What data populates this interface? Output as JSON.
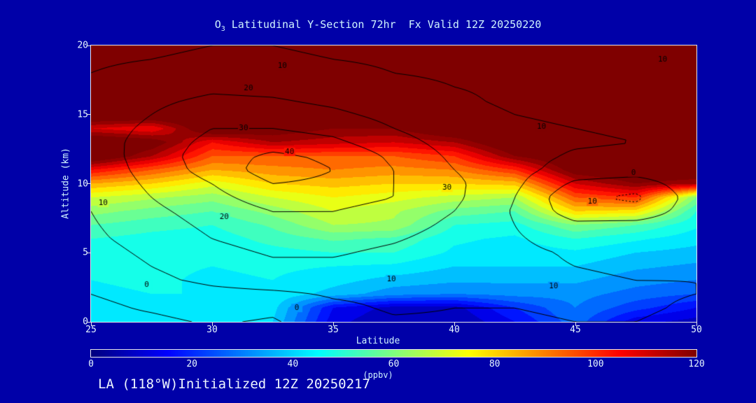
{
  "header": {
    "title_o": "O",
    "title_sub": "3",
    "title_rest": " Latitudinal Y-Section 72hr  Fx Valid 12Z 20250220"
  },
  "footer": {
    "init_text": "LA (118°W)Initialized 12Z 20250217"
  },
  "colors": {
    "background": "#0000A8",
    "text": "#CFF3FF",
    "tick_text": "#E6F7FF",
    "frame": "#E8E8E8",
    "contour_line": "#000000"
  },
  "chart_data": {
    "type": "heatmap",
    "title": "O3 Latitudinal Y-Section 72hr  Fx Valid 12Z 20250220",
    "xlabel": "Latitude",
    "ylabel": "Altitude (km)",
    "xlim": [
      25,
      50
    ],
    "ylim": [
      0,
      20
    ],
    "x_ticks": [
      25,
      30,
      35,
      40,
      45,
      50
    ],
    "y_ticks": [
      0,
      5,
      10,
      15,
      20
    ],
    "colorbar": {
      "label": "(ppbv)",
      "min": 0,
      "max": 120,
      "ticks": [
        0,
        20,
        40,
        60,
        80,
        100,
        120
      ],
      "colormap": "jet",
      "band_interval_ppbv": 5
    },
    "grid": {
      "lats": [
        25,
        27.5,
        30,
        32.5,
        35,
        37.5,
        40,
        42.5,
        45,
        47.5,
        50
      ],
      "alts_km": [
        0,
        1,
        2,
        3,
        4,
        5,
        6,
        7,
        8,
        9,
        10,
        11,
        12,
        13,
        14,
        15,
        16,
        17,
        18,
        19,
        20
      ],
      "ozone_ppbv": [
        [
          40,
          42,
          42,
          40,
          12,
          5,
          5,
          15,
          28,
          12,
          8
        ],
        [
          42,
          44,
          44,
          42,
          15,
          8,
          8,
          20,
          30,
          22,
          15
        ],
        [
          44,
          45,
          45,
          44,
          38,
          32,
          30,
          32,
          32,
          28,
          25
        ],
        [
          45,
          46,
          44,
          45,
          42,
          38,
          36,
          36,
          36,
          32,
          30
        ],
        [
          46,
          46,
          45,
          46,
          45,
          44,
          40,
          40,
          40,
          36,
          34
        ],
        [
          47,
          47,
          46,
          48,
          50,
          50,
          44,
          42,
          44,
          40,
          38
        ],
        [
          50,
          48,
          47,
          52,
          56,
          54,
          46,
          44,
          50,
          46,
          42
        ],
        [
          55,
          52,
          50,
          56,
          65,
          64,
          50,
          48,
          60,
          55,
          46
        ],
        [
          62,
          58,
          55,
          62,
          70,
          66,
          58,
          55,
          80,
          78,
          50
        ],
        [
          70,
          66,
          62,
          70,
          75,
          72,
          68,
          65,
          95,
          100,
          60
        ],
        [
          85,
          80,
          72,
          80,
          82,
          80,
          80,
          82,
          110,
          120,
          115
        ],
        [
          105,
          95,
          85,
          88,
          90,
          88,
          90,
          100,
          125,
          130,
          130
        ],
        [
          130,
          115,
          95,
          95,
          95,
          95,
          100,
          120,
          130,
          130,
          130
        ],
        [
          130,
          125,
          105,
          115,
          112,
          110,
          115,
          130,
          130,
          130,
          130
        ],
        [
          110,
          105,
          130,
          125,
          120,
          120,
          130,
          130,
          130,
          130,
          130
        ],
        [
          130,
          130,
          130,
          130,
          128,
          130,
          130,
          130,
          130,
          130,
          130
        ],
        [
          130,
          130,
          130,
          130,
          130,
          130,
          130,
          130,
          130,
          130,
          130
        ],
        [
          130,
          130,
          130,
          130,
          130,
          130,
          130,
          130,
          130,
          130,
          130
        ],
        [
          130,
          130,
          130,
          130,
          130,
          130,
          130,
          130,
          130,
          130,
          130
        ],
        [
          130,
          130,
          130,
          130,
          130,
          130,
          130,
          130,
          130,
          130,
          130
        ],
        [
          130,
          130,
          130,
          130,
          130,
          130,
          130,
          130,
          130,
          130,
          130
        ]
      ]
    },
    "contours": {
      "levels": [
        -10,
        0,
        10,
        20,
        30,
        40
      ],
      "negative_style": "dotted",
      "values": [
        [
          -3,
          -2,
          1,
          -1,
          6,
          9,
          9,
          9,
          10,
          10,
          8
        ],
        [
          -2,
          1,
          4,
          2,
          8,
          11,
          10,
          10,
          11,
          11,
          9
        ],
        [
          0,
          3,
          7,
          8,
          11,
          12,
          11,
          11,
          11,
          11,
          10
        ],
        [
          2,
          8,
          12,
          15,
          15,
          14,
          12,
          12,
          11,
          10,
          10
        ],
        [
          4,
          10,
          14,
          18,
          18,
          16,
          13,
          12,
          10,
          9,
          9
        ],
        [
          6,
          12,
          17,
          21,
          21,
          18,
          14,
          12,
          9,
          8,
          8
        ],
        [
          8,
          14,
          20,
          24,
          24,
          21,
          16,
          11,
          6,
          6,
          7
        ],
        [
          9,
          16,
          22,
          27,
          27,
          24,
          18,
          10,
          2,
          3,
          6
        ],
        [
          10,
          18,
          24,
          30,
          30,
          26,
          20,
          9,
          -5,
          -6,
          5
        ],
        [
          11,
          20,
          27,
          35,
          34,
          30,
          22,
          10,
          -8,
          -12,
          5
        ],
        [
          12,
          22,
          30,
          40,
          38,
          30,
          22,
          12,
          -2,
          -5,
          6
        ],
        [
          13,
          24,
          34,
          45,
          40,
          30,
          20,
          13,
          6,
          5,
          7
        ],
        [
          14,
          25,
          35,
          42,
          38,
          28,
          18,
          13,
          9,
          8,
          8
        ],
        [
          15,
          24,
          33,
          35,
          32,
          24,
          16,
          12,
          11,
          10,
          8
        ],
        [
          15,
          22,
          30,
          30,
          27,
          20,
          14,
          11,
          10,
          9,
          8
        ],
        [
          14,
          20,
          26,
          25,
          22,
          17,
          12,
          10,
          9,
          8,
          7
        ],
        [
          13,
          18,
          22,
          21,
          18,
          14,
          11,
          9,
          8,
          7,
          6
        ],
        [
          12,
          15,
          18,
          17,
          15,
          12,
          10,
          9,
          8,
          7,
          6
        ],
        [
          10,
          12,
          14,
          13,
          12,
          10,
          9,
          8,
          7,
          6,
          5
        ],
        [
          9,
          10,
          11,
          11,
          10,
          9,
          8,
          7,
          6,
          5,
          5
        ],
        [
          8,
          9,
          10,
          10,
          9,
          8,
          7,
          6,
          5,
          5,
          5
        ]
      ],
      "labels": [
        {
          "text": "10",
          "lat": 48.6,
          "alt": 19.0
        },
        {
          "text": "10",
          "lat": 32.9,
          "alt": 18.5
        },
        {
          "text": "20",
          "lat": 31.5,
          "alt": 16.9
        },
        {
          "text": "30",
          "lat": 31.3,
          "alt": 14.0
        },
        {
          "text": "40",
          "lat": 33.2,
          "alt": 12.3
        },
        {
          "text": "30",
          "lat": 39.7,
          "alt": 9.7
        },
        {
          "text": "10",
          "lat": 43.6,
          "alt": 14.1
        },
        {
          "text": "0",
          "lat": 47.4,
          "alt": 10.8
        },
        {
          "text": "10",
          "lat": 45.7,
          "alt": 8.7
        },
        {
          "text": "10",
          "lat": 25.5,
          "alt": 8.6
        },
        {
          "text": "20",
          "lat": 30.5,
          "alt": 7.6
        },
        {
          "text": "10",
          "lat": 37.4,
          "alt": 3.1
        },
        {
          "text": "0",
          "lat": 27.3,
          "alt": 2.7
        },
        {
          "text": "0",
          "lat": 33.5,
          "alt": 1.0
        },
        {
          "text": "10",
          "lat": 44.1,
          "alt": 2.6
        }
      ]
    }
  }
}
